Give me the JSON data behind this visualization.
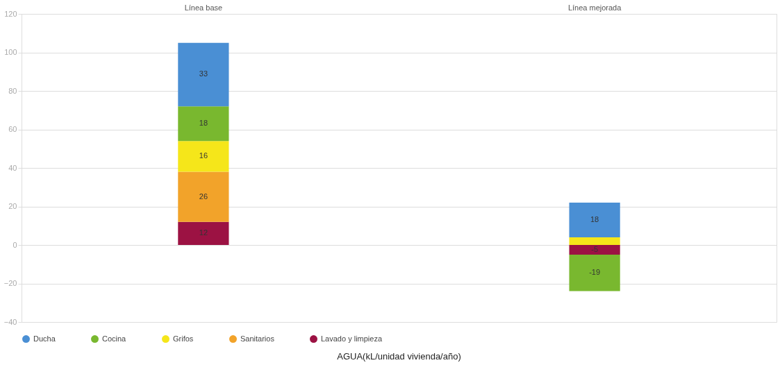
{
  "chart_data": {
    "type": "bar",
    "stacked": true,
    "categories": [
      "Línea base",
      "Línea mejorada"
    ],
    "xlabel": "AGUA(kL/unidad vivienda/año)",
    "ylim": [
      -40,
      120
    ],
    "yticks": [
      -40,
      -20,
      0,
      20,
      40,
      60,
      80,
      100,
      120
    ],
    "grid": "y",
    "legend": "bottom",
    "marker": "circle",
    "series": [
      {
        "name": "Lavado y limpieza",
        "color": "#9c1243",
        "values": [
          12,
          -5
        ],
        "value_labels": [
          "12",
          "-5"
        ]
      },
      {
        "name": "Sanitarios",
        "color": "#f2a32a",
        "values": [
          26,
          0
        ],
        "value_labels": [
          "26",
          null
        ]
      },
      {
        "name": "Grifos",
        "color": "#f5e61a",
        "values": [
          16,
          4
        ],
        "value_labels": [
          "16",
          null
        ]
      },
      {
        "name": "Cocina",
        "color": "#79b82f",
        "values": [
          18,
          -19
        ],
        "value_labels": [
          "18",
          "-19"
        ]
      },
      {
        "name": "Ducha",
        "color": "#4a8fd4",
        "values": [
          33,
          18
        ],
        "value_labels": [
          "33",
          "18"
        ]
      }
    ]
  }
}
